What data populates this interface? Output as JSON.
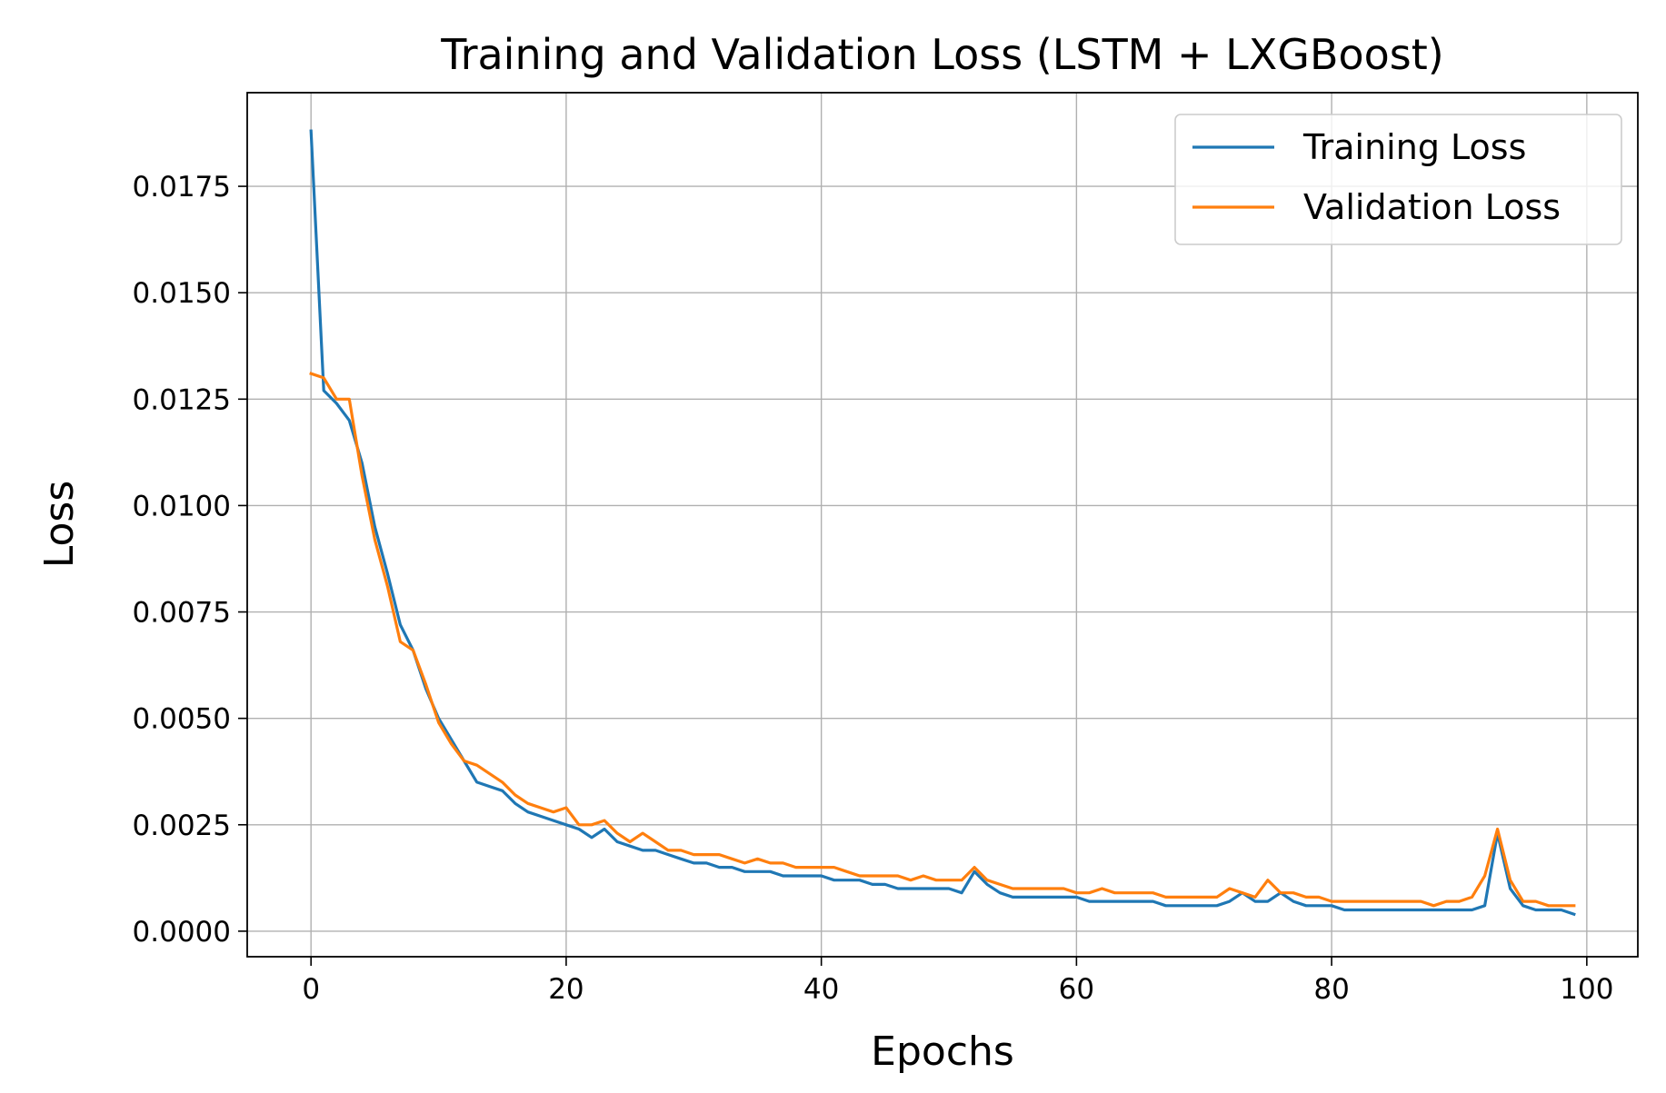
{
  "chart_data": {
    "type": "line",
    "title": "Training and Validation Loss (LSTM + LXGBoost)",
    "xlabel": "Epochs",
    "ylabel": "Loss",
    "xlim": [
      -5,
      104
    ],
    "ylim": [
      -0.0006,
      0.0197
    ],
    "xticks": [
      0,
      20,
      40,
      60,
      80,
      100
    ],
    "xtick_labels": [
      "0",
      "20",
      "40",
      "60",
      "80",
      "100"
    ],
    "yticks": [
      0.0,
      0.0025,
      0.005,
      0.0075,
      0.01,
      0.0125,
      0.015,
      0.0175
    ],
    "ytick_labels": [
      "0.0000",
      "0.0025",
      "0.0050",
      "0.0075",
      "0.0100",
      "0.0125",
      "0.0150",
      "0.0175"
    ],
    "grid": true,
    "legend_position": "top-right",
    "series": [
      {
        "name": "Training Loss",
        "color": "#1f77b4",
        "values": [
          0.0188,
          0.0127,
          0.0124,
          0.012,
          0.011,
          0.0095,
          0.0084,
          0.0072,
          0.0066,
          0.0057,
          0.005,
          0.0045,
          0.004,
          0.0035,
          0.0034,
          0.0033,
          0.003,
          0.0028,
          0.0027,
          0.0026,
          0.0025,
          0.0024,
          0.0022,
          0.0024,
          0.0021,
          0.002,
          0.0019,
          0.0019,
          0.0018,
          0.0017,
          0.0016,
          0.0016,
          0.0015,
          0.0015,
          0.0014,
          0.0014,
          0.0014,
          0.0013,
          0.0013,
          0.0013,
          0.0013,
          0.0012,
          0.0012,
          0.0012,
          0.0011,
          0.0011,
          0.001,
          0.001,
          0.001,
          0.001,
          0.001,
          0.0009,
          0.0014,
          0.0011,
          0.0009,
          0.0008,
          0.0008,
          0.0008,
          0.0008,
          0.0008,
          0.0008,
          0.0007,
          0.0007,
          0.0007,
          0.0007,
          0.0007,
          0.0007,
          0.0006,
          0.0006,
          0.0006,
          0.0006,
          0.0006,
          0.0007,
          0.0009,
          0.0007,
          0.0007,
          0.0009,
          0.0007,
          0.0006,
          0.0006,
          0.0006,
          0.0005,
          0.0005,
          0.0005,
          0.0005,
          0.0005,
          0.0005,
          0.0005,
          0.0005,
          0.0005,
          0.0005,
          0.0005,
          0.0006,
          0.0023,
          0.001,
          0.0006,
          0.0005,
          0.0005,
          0.0005,
          0.0004
        ]
      },
      {
        "name": "Validation Loss",
        "color": "#ff7f0e",
        "values": [
          0.0131,
          0.013,
          0.0125,
          0.0125,
          0.0107,
          0.0092,
          0.0081,
          0.0068,
          0.0066,
          0.0058,
          0.0049,
          0.0044,
          0.004,
          0.0039,
          0.0037,
          0.0035,
          0.0032,
          0.003,
          0.0029,
          0.0028,
          0.0029,
          0.0025,
          0.0025,
          0.0026,
          0.0023,
          0.0021,
          0.0023,
          0.0021,
          0.0019,
          0.0019,
          0.0018,
          0.0018,
          0.0018,
          0.0017,
          0.0016,
          0.0017,
          0.0016,
          0.0016,
          0.0015,
          0.0015,
          0.0015,
          0.0015,
          0.0014,
          0.0013,
          0.0013,
          0.0013,
          0.0013,
          0.0012,
          0.0013,
          0.0012,
          0.0012,
          0.0012,
          0.0015,
          0.0012,
          0.0011,
          0.001,
          0.001,
          0.001,
          0.001,
          0.001,
          0.0009,
          0.0009,
          0.001,
          0.0009,
          0.0009,
          0.0009,
          0.0009,
          0.0008,
          0.0008,
          0.0008,
          0.0008,
          0.0008,
          0.001,
          0.0009,
          0.0008,
          0.0012,
          0.0009,
          0.0009,
          0.0008,
          0.0008,
          0.0007,
          0.0007,
          0.0007,
          0.0007,
          0.0007,
          0.0007,
          0.0007,
          0.0007,
          0.0006,
          0.0007,
          0.0007,
          0.0008,
          0.0013,
          0.0024,
          0.0012,
          0.0007,
          0.0007,
          0.0006,
          0.0006,
          0.0006
        ]
      }
    ]
  }
}
